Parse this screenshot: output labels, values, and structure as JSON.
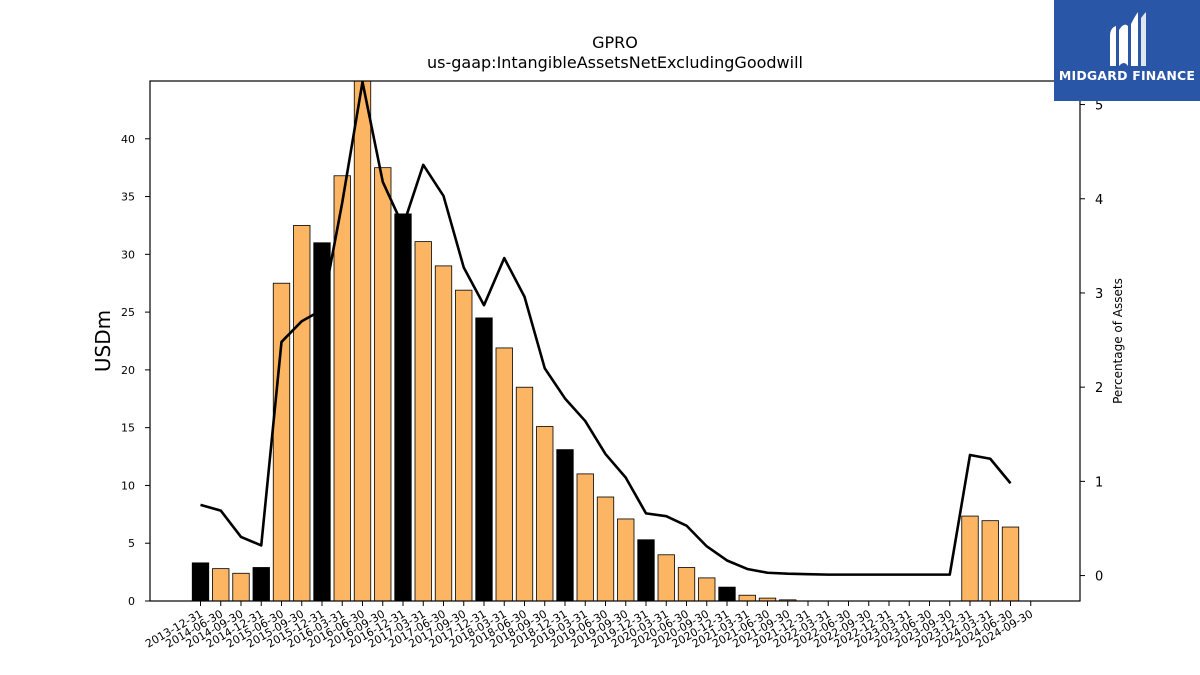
{
  "brand": {
    "name": "MIDGARD FINANCE",
    "logo_icon": "midgard-logo-icon",
    "background_color": "#2a56a8"
  },
  "chart_data": {
    "type": "bar",
    "title": "GPRO",
    "subtitle": "us-gaap:IntangibleAssetsNetExcludingGoodwill",
    "ylabel": "USDm",
    "y2label": "Percentage of Assets",
    "ylim": [
      0,
      45
    ],
    "y2lim": [
      -0.27,
      5.25
    ],
    "yticks": [
      0,
      5,
      10,
      15,
      20,
      25,
      30,
      35,
      40
    ],
    "y2ticks": [
      0,
      1,
      2,
      3,
      4,
      5
    ],
    "grid": false,
    "colors": {
      "bar_default": "#fbb563",
      "bar_highlight": "#000000",
      "line": "#000000"
    },
    "categories": [
      "2013-12-31",
      "2014-06-30",
      "2014-09-30",
      "2014-12-31",
      "2015-06-30",
      "2015-09-30",
      "2015-12-31",
      "2016-03-31",
      "2016-06-30",
      "2016-09-30",
      "2016-12-31",
      "2017-03-31",
      "2017-06-30",
      "2017-09-30",
      "2017-12-31",
      "2018-03-31",
      "2018-06-30",
      "2018-09-30",
      "2018-12-31",
      "2019-03-31",
      "2019-06-30",
      "2019-09-30",
      "2019-12-31",
      "2020-03-31",
      "2020-06-30",
      "2020-09-30",
      "2020-12-31",
      "2021-03-31",
      "2021-06-30",
      "2021-09-30",
      "2021-12-31",
      "2022-03-31",
      "2022-06-30",
      "2022-09-30",
      "2022-12-31",
      "2023-03-31",
      "2023-06-30",
      "2023-09-30",
      "2023-12-31",
      "2024-03-31",
      "2024-06-30",
      "2024-09-30"
    ],
    "series": [
      {
        "name": "USDm",
        "kind": "bar",
        "values": [
          3.3,
          2.8,
          2.4,
          2.9,
          27.5,
          32.5,
          31.0,
          36.8,
          45.0,
          37.5,
          33.5,
          31.1,
          29.0,
          26.9,
          24.5,
          21.9,
          18.5,
          15.1,
          13.1,
          11.0,
          9.0,
          7.1,
          5.3,
          4.0,
          2.9,
          2.0,
          1.2,
          0.5,
          0.25,
          0.1,
          0,
          0,
          0,
          0,
          0,
          0,
          0,
          0,
          7.35,
          6.95,
          6.4,
          0
        ],
        "highlight": [
          true,
          false,
          false,
          true,
          false,
          false,
          true,
          false,
          false,
          false,
          true,
          false,
          false,
          false,
          true,
          false,
          false,
          false,
          true,
          false,
          false,
          false,
          true,
          false,
          false,
          false,
          true,
          false,
          false,
          false,
          false,
          false,
          false,
          false,
          false,
          false,
          false,
          false,
          false,
          false,
          false,
          false
        ]
      },
      {
        "name": "Percentage of Assets",
        "kind": "line",
        "axis": "right",
        "values": [
          0.75,
          0.69,
          0.41,
          0.32,
          2.48,
          2.7,
          2.82,
          3.96,
          5.24,
          4.18,
          3.71,
          4.36,
          4.03,
          3.27,
          2.87,
          3.37,
          2.96,
          2.2,
          1.88,
          1.64,
          1.29,
          1.04,
          0.66,
          0.63,
          0.53,
          0.31,
          0.16,
          0.07,
          0.03,
          0.02,
          0.015,
          0.01,
          0.01,
          0.01,
          0.01,
          0.01,
          0.01,
          0.01,
          1.28,
          1.24,
          0.98,
          null
        ]
      }
    ]
  }
}
